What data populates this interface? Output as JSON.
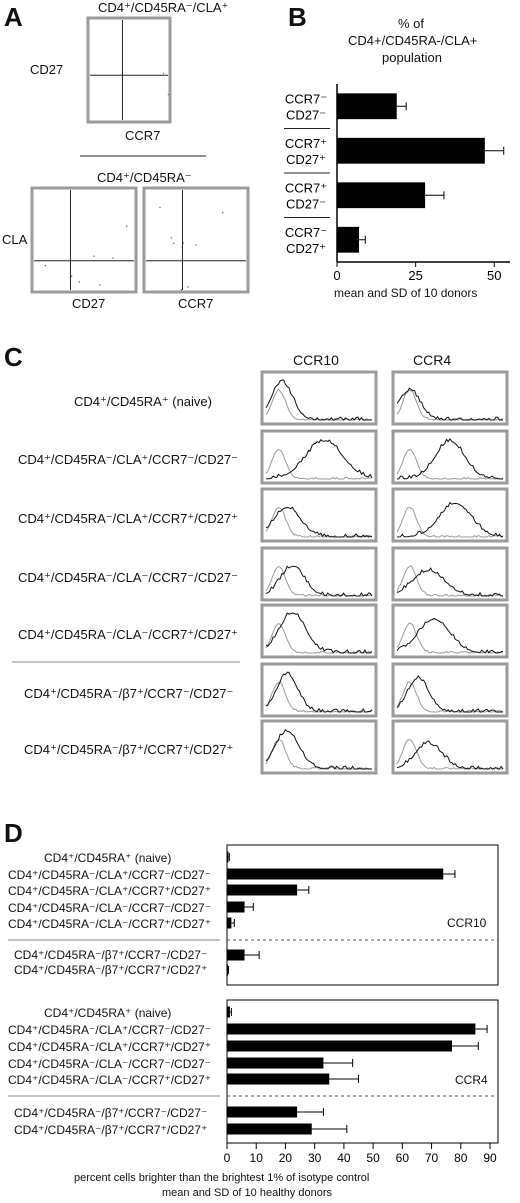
{
  "panel_a": {
    "letter": "A",
    "top_title": "CD4⁺/CD45RA⁻/CLA⁺",
    "top_ylabel": "CD27",
    "top_xlabel": "CCR7",
    "bottom_title": "CD4⁺/CD45RA⁻",
    "bottom_ylabel": "CLA",
    "bottom_left_xlabel": "CD27",
    "bottom_right_xlabel": "CCR7"
  },
  "panel_b": {
    "letter": "B",
    "title_line1": "% of",
    "title_line2": "CD4+/CD45RA-/CLA+",
    "title_line3": "population",
    "xlabel": "mean and SD of 10 donors",
    "row_labels": [
      [
        "CCR7⁻",
        "CD27⁻"
      ],
      [
        "CCR7⁺",
        "CD27⁺"
      ],
      [
        "CCR7⁺",
        "CD27⁻"
      ],
      [
        "CCR7⁻",
        "CD27⁺"
      ]
    ],
    "ticks": [
      "0",
      "25",
      "50"
    ]
  },
  "panel_c": {
    "letter": "C",
    "col_titles": [
      "CCR10",
      "CCR4"
    ],
    "rows": [
      "CD4⁺/CD45RA⁺ (naive)",
      "CD4⁺/CD45RA⁻/CLA⁺/CCR7⁻/CD27⁻",
      "CD4⁺/CD45RA⁻/CLA⁺/CCR7⁺/CD27⁺",
      "CD4⁺/CD45RA⁻/CLA⁻/CCR7⁻/CD27⁻",
      "CD4⁺/CD45RA⁻/CLA⁻/CCR7⁺/CD27⁺",
      "CD4⁺/CD45RA⁻/β7⁺/CCR7⁻/CD27⁻",
      "CD4⁺/CD45RA⁻/β7⁺/CCR7⁺/CD27⁺"
    ]
  },
  "panel_d": {
    "letter": "D",
    "xlabel_line1": "percent cells brighter than the brightest 1% of isotype control",
    "xlabel_line2": "mean and SD of 10 healthy donors",
    "ticks": [
      "0",
      "10",
      "20",
      "30",
      "40",
      "50",
      "60",
      "70",
      "80",
      "90"
    ],
    "top_tag": "CCR10",
    "bottom_tag": "CCR4",
    "row_labels": [
      "CD4⁺/CD45RA⁺ (naive)",
      "CD4⁺/CD45RA⁻/CLA⁺/CCR7⁻/CD27⁻",
      "CD4⁺/CD45RA⁻/CLA⁺/CCR7⁺/CD27⁺",
      "CD4⁺/CD45RA⁻/CLA⁻/CCR7⁻/CD27⁻",
      "CD4⁺/CD45RA⁻/CLA⁻/CCR7⁺/CD27⁺",
      "CD4⁺/CD45RA⁻/β7⁺/CCR7⁻/CD27⁻",
      "CD4⁺/CD45RA⁻/β7⁺/CCR7⁺/CD27⁺"
    ]
  },
  "chart_data": [
    {
      "type": "bar",
      "orientation": "horizontal",
      "panel": "B",
      "categories": [
        "CCR7⁻ CD27⁻",
        "CCR7⁺ CD27⁺",
        "CCR7⁺ CD27⁻",
        "CCR7⁻ CD27⁺"
      ],
      "values": [
        19,
        47,
        28,
        7
      ],
      "errors": [
        3,
        6,
        6,
        2
      ],
      "xlim": [
        0,
        55
      ],
      "xticks": [
        0,
        25,
        50
      ]
    },
    {
      "type": "bar",
      "orientation": "horizontal",
      "panel": "D",
      "subplot": "CCR10",
      "categories": [
        "CD4⁺/CD45RA⁺ (naive)",
        "CD4⁺/CD45RA⁻/CLA⁺/CCR7⁻/CD27⁻",
        "CD4⁺/CD45RA⁻/CLA⁺/CCR7⁺/CD27⁺",
        "CD4⁺/CD45RA⁻/CLA⁻/CCR7⁻/CD27⁻",
        "CD4⁺/CD45RA⁻/CLA⁻/CCR7⁺/CD27⁺",
        "CD4⁺/CD45RA⁻/β7⁺/CCR7⁻/CD27⁻",
        "CD4⁺/CD45RA⁻/β7⁺/CCR7⁺/CD27⁺"
      ],
      "values": [
        0.5,
        74,
        24,
        6,
        1.5,
        6,
        0.3
      ],
      "errors": [
        0.3,
        4,
        4,
        3,
        1,
        5,
        0.2
      ],
      "xlim": [
        0,
        90
      ]
    },
    {
      "type": "bar",
      "orientation": "horizontal",
      "panel": "D",
      "subplot": "CCR4",
      "categories": [
        "CD4⁺/CD45RA⁺ (naive)",
        "CD4⁺/CD45RA⁻/CLA⁺/CCR7⁻/CD27⁻",
        "CD4⁺/CD45RA⁻/CLA⁺/CCR7⁺/CD27⁺",
        "CD4⁺/CD45RA⁻/CLA⁻/CCR7⁻/CD27⁻",
        "CD4⁺/CD45RA⁻/CLA⁻/CCR7⁺/CD27⁺",
        "CD4⁺/CD45RA⁻/β7⁺/CCR7⁻/CD27⁻",
        "CD4⁺/CD45RA⁻/β7⁺/CCR7⁺/CD27⁺"
      ],
      "values": [
        1,
        85,
        77,
        33,
        35,
        24,
        29
      ],
      "errors": [
        0.5,
        4,
        9,
        10,
        10,
        9,
        12
      ],
      "xlim": [
        0,
        90
      ]
    }
  ]
}
